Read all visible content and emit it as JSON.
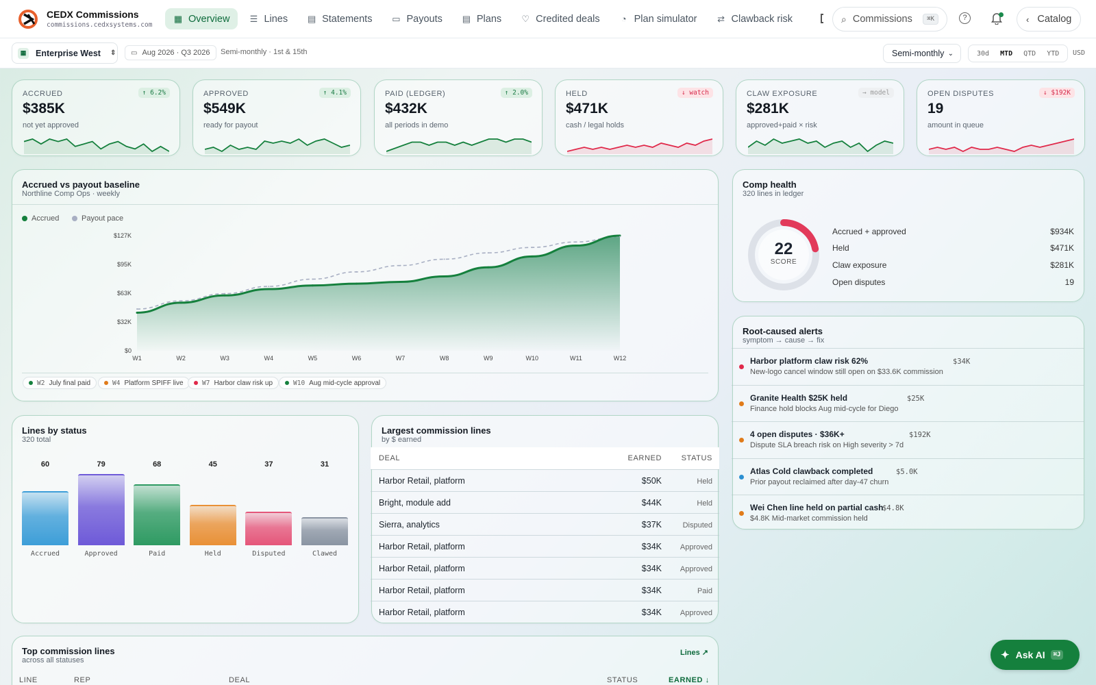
{
  "app": {
    "name": "CEDX Commissions",
    "url": "commissions.cedxsystems.com"
  },
  "nav": {
    "items": [
      {
        "label": "Overview",
        "icon": "grid-icon",
        "active": true
      },
      {
        "label": "Lines",
        "icon": "list-icon"
      },
      {
        "label": "Statements",
        "icon": "document-icon"
      },
      {
        "label": "Payouts",
        "icon": "cash-icon"
      },
      {
        "label": "Plans",
        "icon": "plans-icon"
      },
      {
        "label": "Credited deals",
        "icon": "handshake-icon"
      },
      {
        "label": "Plan simulator",
        "icon": "gauge-icon"
      },
      {
        "label": "Clawback risk",
        "icon": "repeat-icon"
      }
    ]
  },
  "search": {
    "label": "Commissions",
    "shortcut": "⌘K"
  },
  "catalog": {
    "label": "Catalog"
  },
  "subbar": {
    "org": "Enterprise West",
    "period": "Aug 2026 · Q3 2026",
    "period_note": "Semi-monthly · 1st & 15th",
    "cadence": "Semi-monthly",
    "ranges": [
      "30d",
      "MTD",
      "QTD",
      "YTD"
    ],
    "range_active": "MTD",
    "currency": "USD"
  },
  "kpis": [
    {
      "label": "ACCRUED",
      "value": "$385K",
      "sub": "not yet approved",
      "badge": "↑ 6.2%",
      "trend": "up",
      "spark": [
        8,
        9,
        7,
        9,
        8,
        9,
        6,
        7,
        8,
        5,
        7,
        8,
        6,
        5,
        7,
        4,
        6,
        4
      ]
    },
    {
      "label": "APPROVED",
      "value": "$549K",
      "sub": "ready for payout",
      "badge": "↑ 4.1%",
      "trend": "up",
      "spark": [
        3,
        4,
        2,
        5,
        3,
        4,
        3,
        7,
        6,
        7,
        6,
        8,
        5,
        7,
        8,
        6,
        4,
        5
      ]
    },
    {
      "label": "PAID (LEDGER)",
      "value": "$432K",
      "sub": "all periods in demo",
      "badge": "↑ 2.0%",
      "trend": "up",
      "spark": [
        2,
        3,
        4,
        5,
        5,
        4,
        5,
        5,
        4,
        5,
        4,
        5,
        6,
        6,
        5,
        6,
        6,
        5
      ]
    },
    {
      "label": "HELD",
      "value": "$471K",
      "sub": "cash / legal holds",
      "badge": "↓ watch",
      "trend": "down",
      "spark": [
        3,
        4,
        5,
        4,
        5,
        4,
        5,
        6,
        5,
        6,
        5,
        7,
        6,
        5,
        7,
        6,
        8,
        9
      ]
    },
    {
      "label": "CLAW EXPOSURE",
      "value": "$281K",
      "sub": "approved+paid × risk",
      "badge": "→ model",
      "trend": "neutral",
      "spark": [
        5,
        8,
        6,
        9,
        7,
        8,
        9,
        7,
        8,
        5,
        7,
        8,
        5,
        7,
        3,
        6,
        8,
        7
      ]
    },
    {
      "label": "OPEN DISPUTES",
      "value": "19",
      "sub": "amount in queue",
      "badge": "↓ $192K",
      "trend": "down",
      "spark": [
        3,
        4,
        3,
        4,
        2,
        4,
        3,
        3,
        4,
        3,
        2,
        4,
        5,
        4,
        5,
        6,
        7,
        8
      ]
    }
  ],
  "main_chart": {
    "title": "Accrued vs payout baseline",
    "subtitle": "Northline Comp Ops · weekly"
  },
  "chart_data": [
    {
      "type": "area",
      "x": [
        "W1",
        "W2",
        "W3",
        "W4",
        "W5",
        "W6",
        "W7",
        "W8",
        "W9",
        "W10",
        "W11",
        "W12"
      ],
      "y_ticks": [
        "$0",
        "$32K",
        "$63K",
        "$95K",
        "$127K"
      ],
      "ylim": [
        0,
        127000
      ],
      "series": [
        {
          "name": "Accrued",
          "color": "#15803d",
          "values": [
            42000,
            53000,
            61000,
            68000,
            72000,
            74000,
            76000,
            82000,
            92000,
            104000,
            116000,
            127000
          ]
        },
        {
          "name": "Payout pace",
          "color": "#a8afc3",
          "values": [
            46000,
            55000,
            63000,
            71000,
            79000,
            87000,
            94000,
            101000,
            108000,
            114000,
            120000,
            126000
          ]
        }
      ]
    },
    {
      "type": "bar",
      "categories": [
        "Accrued",
        "Approved",
        "Paid",
        "Held",
        "Disputed",
        "Clawed"
      ],
      "values": [
        60,
        79,
        68,
        45,
        37,
        31
      ],
      "colors": [
        "#3d9ed8",
        "#6e5ad8",
        "#2e9a62",
        "#e99036",
        "#e5567a",
        "#8a94a2"
      ]
    }
  ],
  "annotations": [
    {
      "week": "W2",
      "label": "July final paid",
      "color": "#15803d"
    },
    {
      "week": "W4",
      "label": "Platform SPIFF live",
      "color": "#e07b1a"
    },
    {
      "week": "W7",
      "label": "Harbor claw risk up",
      "color": "#e0294a"
    },
    {
      "week": "W10",
      "label": "Aug mid-cycle approval",
      "color": "#15803d"
    }
  ],
  "health": {
    "title": "Comp health",
    "subtitle": "320 lines in ledger",
    "score": "22",
    "score_label": "SCORE",
    "score_fraction": 0.22,
    "rows": [
      {
        "label": "Accrued + approved",
        "value": "$934K"
      },
      {
        "label": "Held",
        "value": "$471K"
      },
      {
        "label": "Claw exposure",
        "value": "$281K"
      },
      {
        "label": "Open disputes",
        "value": "19"
      }
    ]
  },
  "alerts": {
    "title": "Root-caused alerts",
    "subtitle": "symptom → cause → fix",
    "items": [
      {
        "title": "Harbor platform claw risk 62%",
        "amount": "$34K",
        "detail": "New-logo cancel window still open on $33.6K commission",
        "color": "#e0294a"
      },
      {
        "title": "Granite Health $25K held",
        "amount": "$25K",
        "detail": "Finance hold blocks Aug mid-cycle for Diego",
        "color": "#e07b1a"
      },
      {
        "title": "4 open disputes · $36K+",
        "amount": "$192K",
        "detail": "Dispute SLA breach risk on High severity > 7d",
        "color": "#e07b1a"
      },
      {
        "title": "Atlas Cold clawback completed",
        "amount": "$5.0K",
        "detail": "Prior payout reclaimed after day-47 churn",
        "color": "#2b8fd1"
      },
      {
        "title": "Wei Chen line held on partial cash",
        "amount": "$4.8K",
        "detail": "$4.8K Mid-market commission held",
        "color": "#e07b1a"
      }
    ]
  },
  "status_card": {
    "title": "Lines by status",
    "subtitle": "320 total"
  },
  "largest": {
    "title": "Largest commission lines",
    "subtitle": "by $ earned",
    "columns": [
      "DEAL",
      "EARNED",
      "STATUS"
    ],
    "rows": [
      {
        "deal": "Harbor Retail, platform",
        "earned": "$50K",
        "status": "Held"
      },
      {
        "deal": "Bright, module add",
        "earned": "$44K",
        "status": "Held"
      },
      {
        "deal": "Sierra, analytics",
        "earned": "$37K",
        "status": "Disputed"
      },
      {
        "deal": "Harbor Retail, platform",
        "earned": "$34K",
        "status": "Approved"
      },
      {
        "deal": "Harbor Retail, platform",
        "earned": "$34K",
        "status": "Approved"
      },
      {
        "deal": "Harbor Retail, platform",
        "earned": "$34K",
        "status": "Paid"
      },
      {
        "deal": "Harbor Retail, platform",
        "earned": "$34K",
        "status": "Approved"
      }
    ]
  },
  "top_lines": {
    "title": "Top commission lines",
    "subtitle": "across all statuses",
    "link": "Lines ↗",
    "columns": [
      "LINE",
      "REP",
      "DEAL",
      "STATUS",
      "EARNED ↓"
    ]
  },
  "ask_ai": {
    "label": "Ask AI",
    "shortcut": "⌘J"
  }
}
